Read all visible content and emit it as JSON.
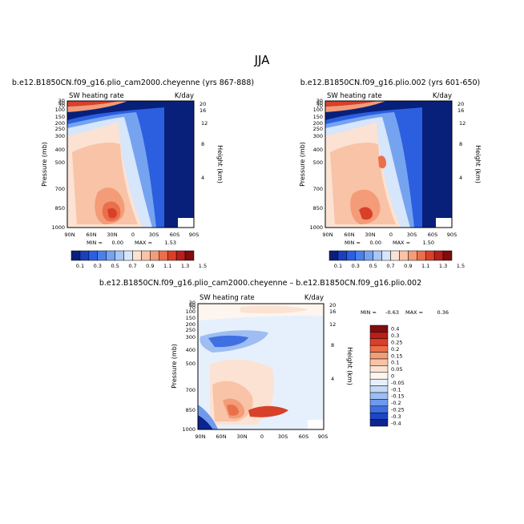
{
  "figure_title": "JJA",
  "chart_data": [
    {
      "type": "heatmap",
      "title": "b.e12.B1850CN.f09_g16.plio_cam2000.cheyenne (yrs 867-888)",
      "left_label": "SW heating rate",
      "units": "K/day",
      "min_label": "MIN =",
      "min_value": "0.00",
      "max_label": "MAX =",
      "max_value": "1.53",
      "ylabel": "Pressure (mb)",
      "ylabel_right": "Height (km)",
      "x_ticks": [
        "90N",
        "60N",
        "30N",
        "0",
        "30S",
        "60S",
        "90S"
      ],
      "y_ticks": [
        "1000",
        "850",
        "700",
        "500",
        "400",
        "300",
        "250",
        "200",
        "150",
        "100",
        "70",
        "50",
        "30"
      ],
      "y_ticks_right": [
        "4",
        "8",
        "12",
        "16",
        "20"
      ],
      "colorbar_labels": [
        "0.1",
        "0.3",
        "0.5",
        "0.7",
        "0.9",
        "1.1",
        "1.3",
        "1.5"
      ]
    },
    {
      "type": "heatmap",
      "title": "b.e12.B1850CN.f09_g16.plio.002 (yrs 601-650)",
      "left_label": "SW heating rate",
      "units": "K/day",
      "min_label": "MIN =",
      "min_value": "0.00",
      "max_label": "MAX =",
      "max_value": "1.50",
      "ylabel": "Pressure (mb)",
      "ylabel_right": "Height (km)",
      "x_ticks": [
        "90N",
        "60N",
        "30N",
        "0",
        "30S",
        "60S",
        "90S"
      ],
      "y_ticks": [
        "1000",
        "850",
        "700",
        "500",
        "400",
        "300",
        "250",
        "200",
        "150",
        "100",
        "70",
        "50",
        "30"
      ],
      "y_ticks_right": [
        "4",
        "8",
        "12",
        "16",
        "20"
      ],
      "colorbar_labels": [
        "0.1",
        "0.3",
        "0.5",
        "0.7",
        "0.9",
        "1.1",
        "1.3",
        "1.5"
      ]
    },
    {
      "type": "heatmap",
      "title": "b.e12.B1850CN.f09_g16.plio_cam2000.cheyenne – b.e12.B1850CN.f09_g16.plio.002",
      "left_label": "SW heating rate",
      "units": "K/day",
      "min_label": "MIN =",
      "min_value": "-0.63",
      "max_label": "MAX =",
      "max_value": "0.36",
      "ylabel": "Pressure (mb)",
      "ylabel_right": "Height (km)",
      "x_ticks": [
        "90N",
        "60N",
        "30N",
        "0",
        "30S",
        "60S",
        "90S"
      ],
      "y_ticks": [
        "1000",
        "850",
        "700",
        "500",
        "400",
        "300",
        "250",
        "200",
        "150",
        "100",
        "70",
        "50",
        "30"
      ],
      "y_ticks_right": [
        "4",
        "8",
        "12",
        "16",
        "20"
      ],
      "colorbar_labels": [
        "0.4",
        "0.3",
        "0.25",
        "0.2",
        "0.15",
        "0.1",
        "0.05",
        "0",
        "-0.05",
        "-0.1",
        "-0.15",
        "-0.2",
        "-0.25",
        "-0.3",
        "-0.4"
      ]
    }
  ],
  "colors": {
    "abs_scale": [
      "#08207a",
      "#1a3fbf",
      "#2b5fe0",
      "#4a80ea",
      "#76a3f0",
      "#a8c6f6",
      "#d6e6fb",
      "#fbe2d3",
      "#f8c3a6",
      "#f39c77",
      "#ea6f4b",
      "#d8402a",
      "#b81e1b",
      "#7f0c0f"
    ],
    "diff_scale": [
      "#7f0c0f",
      "#b81e1b",
      "#d8402a",
      "#ea6f4b",
      "#f39c77",
      "#f8c3a6",
      "#fbe2d3",
      "#fdf5ee",
      "#e6f0fc",
      "#c3d9f7",
      "#9dbdf3",
      "#6f99ec",
      "#3f6fe0",
      "#1e45c4",
      "#0b2590"
    ]
  }
}
